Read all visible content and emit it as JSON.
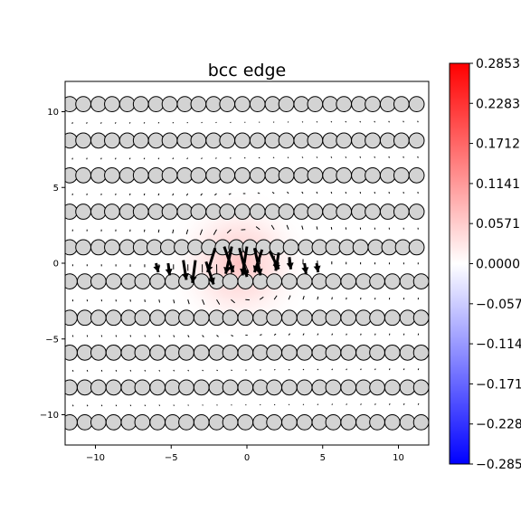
{
  "chart_data": {
    "type": "heatmap",
    "title": "bcc edge",
    "xlim": [
      -12,
      12
    ],
    "ylim": [
      -12,
      12
    ],
    "x_ticks": [
      -10,
      -5,
      0,
      5,
      10
    ],
    "y_ticks": [
      -10,
      -5,
      0,
      5,
      10
    ],
    "x_tick_labels": [
      "−10",
      "−5",
      "0",
      "5",
      "10"
    ],
    "y_tick_labels": [
      "−10",
      "−5",
      "0",
      "5",
      "10"
    ],
    "colormap": "bwr",
    "color_range": [
      -0.2853,
      0.2853
    ],
    "colorbar_ticks": [
      0.2853,
      0.2283,
      0.1712,
      0.1141,
      0.0571,
      0.0,
      -0.0571,
      -0.1141,
      -0.1712,
      -0.2283,
      -0.2853
    ],
    "colorbar_tick_labels": [
      "0.2853",
      "0.2283",
      "0.1712",
      "0.1141",
      "0.0571",
      "0.0000",
      "−0.0571",
      "−0.1141",
      "−0.1712",
      "−0.2283",
      "−0.2853"
    ],
    "field": {
      "peak": 0.1,
      "center": [
        -0.5,
        0.0
      ],
      "sigma": [
        2.3,
        2.3
      ]
    },
    "atom_rows": [
      {
        "y": 10.5,
        "x": [
          -11.7,
          -10.8,
          -9.8,
          -8.9,
          -7.9,
          -7.0,
          -6.0,
          -5.1,
          -4.1,
          -3.2,
          -2.2,
          -1.3,
          -0.3,
          0.7,
          1.7,
          2.6,
          3.6,
          4.5,
          5.5,
          6.4,
          7.4,
          8.3,
          9.3,
          10.2,
          11.2
        ]
      },
      {
        "y": 8.1,
        "x": [
          -11.7,
          -10.8,
          -9.8,
          -8.9,
          -7.9,
          -7.0,
          -6.0,
          -5.1,
          -4.1,
          -3.2,
          -2.2,
          -1.3,
          -0.3,
          0.7,
          1.7,
          2.6,
          3.6,
          4.5,
          5.5,
          6.4,
          7.4,
          8.3,
          9.3,
          10.2,
          11.2
        ]
      },
      {
        "y": 5.8,
        "x": [
          -11.7,
          -10.8,
          -9.8,
          -8.9,
          -7.9,
          -7.0,
          -6.0,
          -5.1,
          -4.1,
          -3.2,
          -2.2,
          -1.3,
          -0.3,
          0.7,
          1.7,
          2.6,
          3.6,
          4.5,
          5.5,
          6.4,
          7.4,
          8.3,
          9.3,
          10.2,
          11.2
        ]
      },
      {
        "y": 3.4,
        "x": [
          -11.7,
          -10.8,
          -9.8,
          -8.9,
          -7.9,
          -7.0,
          -6.0,
          -5.1,
          -4.1,
          -3.2,
          -2.2,
          -1.3,
          -0.3,
          0.7,
          1.7,
          2.6,
          3.6,
          4.5,
          5.5,
          6.4,
          7.4,
          8.3,
          9.3,
          10.2,
          11.2
        ]
      },
      {
        "y": 1.05,
        "x": [
          -11.7,
          -10.8,
          -9.8,
          -8.9,
          -7.9,
          -7.0,
          -6.1,
          -5.2,
          -4.3,
          -3.4,
          -2.5,
          -1.6,
          -0.7,
          0.2,
          1.1,
          2.0,
          2.9,
          3.9,
          4.8,
          5.7,
          6.6,
          7.5,
          8.5,
          9.4,
          10.3,
          11.2
        ]
      },
      {
        "y": -1.2,
        "x": [
          -11.7,
          -10.7,
          -9.8,
          -8.8,
          -7.8,
          -6.9,
          -5.9,
          -4.9,
          -4.0,
          -3.0,
          -2.0,
          -1.1,
          -0.1,
          0.9,
          1.8,
          2.8,
          3.8,
          4.8,
          5.7,
          6.7,
          7.7,
          8.6,
          9.6,
          10.6,
          11.5
        ]
      },
      {
        "y": -3.6,
        "x": [
          -11.7,
          -10.7,
          -9.8,
          -8.8,
          -7.8,
          -6.9,
          -5.9,
          -4.9,
          -4.0,
          -3.0,
          -2.0,
          -1.1,
          -0.1,
          0.9,
          1.8,
          2.8,
          3.8,
          4.8,
          5.7,
          6.7,
          7.7,
          8.6,
          9.6,
          10.6,
          11.5
        ]
      },
      {
        "y": -5.9,
        "x": [
          -11.7,
          -10.7,
          -9.8,
          -8.8,
          -7.8,
          -6.9,
          -5.9,
          -4.9,
          -4.0,
          -3.0,
          -2.0,
          -1.1,
          -0.1,
          0.9,
          1.8,
          2.8,
          3.8,
          4.8,
          5.7,
          6.7,
          7.7,
          8.6,
          9.6,
          10.6,
          11.5
        ]
      },
      {
        "y": -8.2,
        "x": [
          -11.7,
          -10.7,
          -9.8,
          -8.8,
          -7.8,
          -6.9,
          -5.9,
          -4.9,
          -4.0,
          -3.0,
          -2.0,
          -1.1,
          -0.1,
          0.9,
          1.8,
          2.8,
          3.8,
          4.8,
          5.7,
          6.7,
          7.7,
          8.6,
          9.6,
          10.6,
          11.5
        ]
      },
      {
        "y": -10.5,
        "x": [
          -11.7,
          -10.7,
          -9.8,
          -8.8,
          -7.8,
          -6.9,
          -5.9,
          -4.9,
          -4.0,
          -3.0,
          -2.0,
          -1.1,
          -0.1,
          0.9,
          1.8,
          2.8,
          3.8,
          4.8,
          5.7,
          6.7,
          7.7,
          8.6,
          9.6,
          10.6,
          11.5
        ]
      }
    ],
    "atom_radius": 0.5,
    "arrows": [
      {
        "x": -4.2,
        "y": 0.2,
        "dx": 0.2,
        "dy": -1.3
      },
      {
        "x": -3.4,
        "y": 0.2,
        "dx": -0.2,
        "dy": -1.5
      },
      {
        "x": -2.7,
        "y": 0.1,
        "dx": 0.5,
        "dy": -1.5
      },
      {
        "x": -2.1,
        "y": 1.0,
        "dx": -0.5,
        "dy": -1.6
      },
      {
        "x": -1.5,
        "y": 1.1,
        "dx": 0.6,
        "dy": -1.7
      },
      {
        "x": -1.0,
        "y": 1.1,
        "dx": -0.4,
        "dy": -1.8
      },
      {
        "x": -0.5,
        "y": 1.0,
        "dx": 0.5,
        "dy": -1.9
      },
      {
        "x": 0.0,
        "y": 1.1,
        "dx": -0.3,
        "dy": -1.9
      },
      {
        "x": 0.5,
        "y": 1.0,
        "dx": 0.4,
        "dy": -1.8
      },
      {
        "x": 1.0,
        "y": 0.9,
        "dx": -0.5,
        "dy": -1.5
      },
      {
        "x": 1.5,
        "y": 0.8,
        "dx": 0.6,
        "dy": -1.2
      },
      {
        "x": 2.1,
        "y": 0.7,
        "dx": -0.2,
        "dy": -1.2
      },
      {
        "x": 2.8,
        "y": 0.4,
        "dx": 0.1,
        "dy": -0.8
      },
      {
        "x": -6.0,
        "y": 0.0,
        "dx": 0.15,
        "dy": -0.6
      },
      {
        "x": -5.2,
        "y": 0.0,
        "dx": 0.1,
        "dy": -0.8
      },
      {
        "x": 3.8,
        "y": 0.0,
        "dx": 0.1,
        "dy": -0.7
      },
      {
        "x": 4.6,
        "y": 0.0,
        "dx": 0.1,
        "dy": -0.6
      }
    ]
  }
}
